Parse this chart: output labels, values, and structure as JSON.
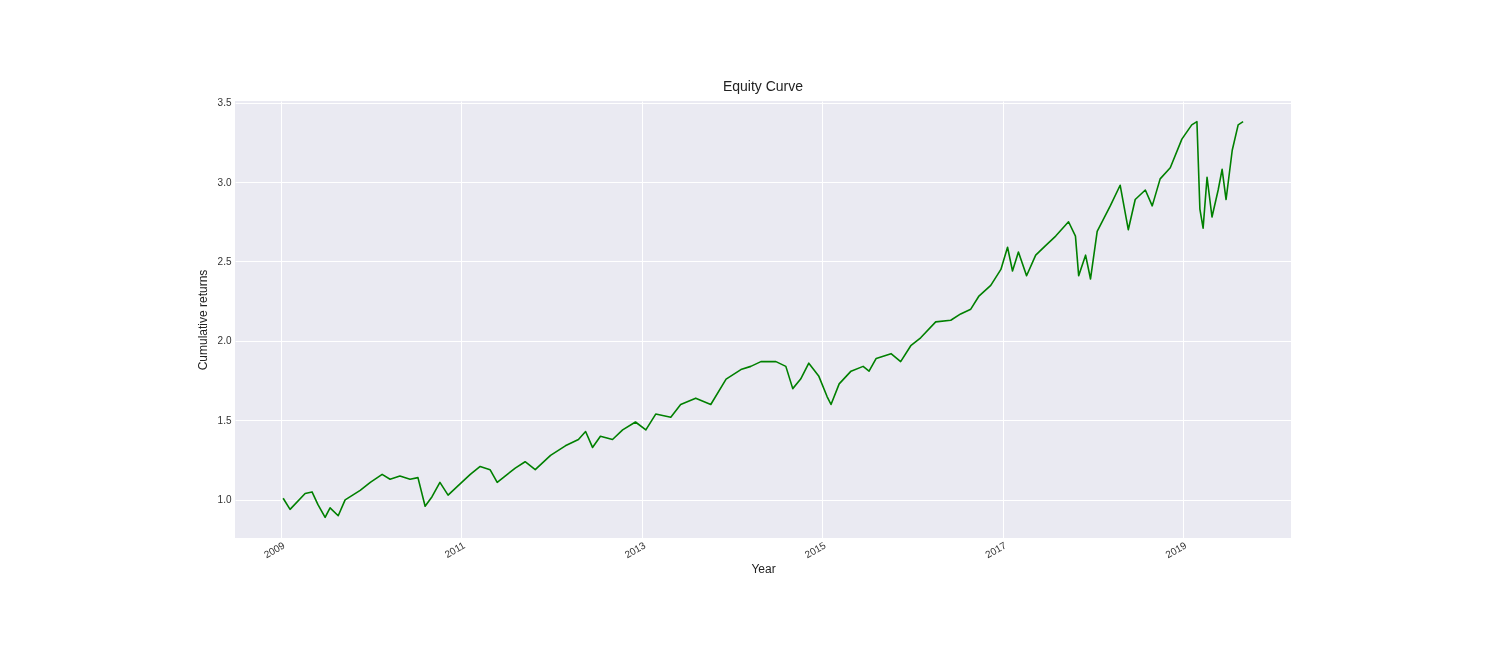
{
  "chart_data": {
    "type": "line",
    "title": "Equity Curve",
    "xlabel": "Year",
    "ylabel": "Cumulative returns",
    "x": [
      "2009-01-09",
      "2009-02-06",
      "2009-04-08",
      "2009-05-06",
      "2009-05-30",
      "2009-06-28",
      "2009-07-18",
      "2009-08-20",
      "2009-09-17",
      "2009-11-17",
      "2009-12-28",
      "2010-02-14",
      "2010-03-18",
      "2010-04-27",
      "2010-06-07",
      "2010-07-09",
      "2010-08-07",
      "2010-09-04",
      "2010-10-06",
      "2010-11-08",
      "2010-12-19",
      "2011-02-06",
      "2011-03-18",
      "2011-04-27",
      "2011-05-26",
      "2011-06-27",
      "2011-08-07",
      "2011-09-16",
      "2011-10-27",
      "2011-12-28",
      "2012-02-26",
      "2012-04-19",
      "2012-05-18",
      "2012-06-15",
      "2012-07-17",
      "2012-09-04",
      "2012-10-15",
      "2012-12-06",
      "2013-01-17",
      "2013-02-26",
      "2013-04-28",
      "2013-06-07",
      "2013-08-07",
      "2013-10-07",
      "2013-12-08",
      "2014-02-06",
      "2014-03-18",
      "2014-04-28",
      "2014-06-28",
      "2014-08-07",
      "2014-09-04",
      "2014-10-06",
      "2014-11-08",
      "2014-12-18",
      "2015-01-21",
      "2015-02-06",
      "2015-03-11",
      "2015-04-28",
      "2015-06-16",
      "2015-07-10",
      "2015-08-08",
      "2015-10-07",
      "2015-11-15",
      "2015-12-26",
      "2016-02-04",
      "2016-04-05",
      "2016-06-05",
      "2016-07-15",
      "2016-08-25",
      "2016-09-26",
      "2016-11-14",
      "2016-12-25",
      "2017-01-21",
      "2017-02-10",
      "2017-03-06",
      "2017-04-08",
      "2017-05-15",
      "2017-06-24",
      "2017-08-04",
      "2017-09-25",
      "2017-10-23",
      "2017-11-05",
      "2017-12-03",
      "2017-12-23",
      "2018-01-19",
      "2018-03-13",
      "2018-04-22",
      "2018-05-25",
      "2018-06-22",
      "2018-08-02",
      "2018-08-30",
      "2018-10-01",
      "2018-11-11",
      "2018-12-28",
      "2019-02-06",
      "2019-02-27",
      "2019-03-11",
      "2019-03-24",
      "2019-04-09",
      "2019-04-29",
      "2019-05-24",
      "2019-06-09",
      "2019-06-25",
      "2019-07-20",
      "2019-08-13",
      "2019-09-02"
    ],
    "series": [
      {
        "color": "#008000",
        "values": [
          1.01,
          0.94,
          1.04,
          1.05,
          0.97,
          0.89,
          0.95,
          0.9,
          1.0,
          1.06,
          1.11,
          1.16,
          1.13,
          1.15,
          1.13,
          1.14,
          0.96,
          1.02,
          1.11,
          1.03,
          1.09,
          1.16,
          1.21,
          1.19,
          1.11,
          1.15,
          1.2,
          1.24,
          1.19,
          1.28,
          1.34,
          1.38,
          1.43,
          1.33,
          1.4,
          1.38,
          1.44,
          1.49,
          1.44,
          1.54,
          1.52,
          1.6,
          1.64,
          1.6,
          1.76,
          1.82,
          1.84,
          1.87,
          1.87,
          1.84,
          1.7,
          1.76,
          1.86,
          1.78,
          1.65,
          1.6,
          1.73,
          1.81,
          1.84,
          1.81,
          1.89,
          1.92,
          1.87,
          1.97,
          2.02,
          2.12,
          2.13,
          2.17,
          2.2,
          2.28,
          2.35,
          2.45,
          2.59,
          2.44,
          2.56,
          2.41,
          2.54,
          2.6,
          2.66,
          2.75,
          2.66,
          2.41,
          2.54,
          2.39,
          2.69,
          2.85,
          2.98,
          2.7,
          2.89,
          2.95,
          2.85,
          3.02,
          3.09,
          3.27,
          3.36,
          3.38,
          2.83,
          2.71,
          3.03,
          2.78,
          2.95,
          3.08,
          2.89,
          3.2,
          3.36,
          3.38
        ]
      }
    ],
    "xlim": [
      "2008-06-28",
      "2020-03-14"
    ],
    "xticks": [
      "2009",
      "2011",
      "2013",
      "2015",
      "2017",
      "2019"
    ],
    "ylim": [
      0.76,
      3.51
    ],
    "yticks": [
      {
        "value": 1,
        "label": "1.0"
      },
      {
        "value": 1.5,
        "label": "1.5"
      },
      {
        "value": 2,
        "label": "2.0"
      },
      {
        "value": 2.5,
        "label": "2.5"
      },
      {
        "value": 3,
        "label": "3.0"
      },
      {
        "value": 3.5,
        "label": "3.5"
      }
    ],
    "grid": true,
    "line_style": "solid"
  }
}
